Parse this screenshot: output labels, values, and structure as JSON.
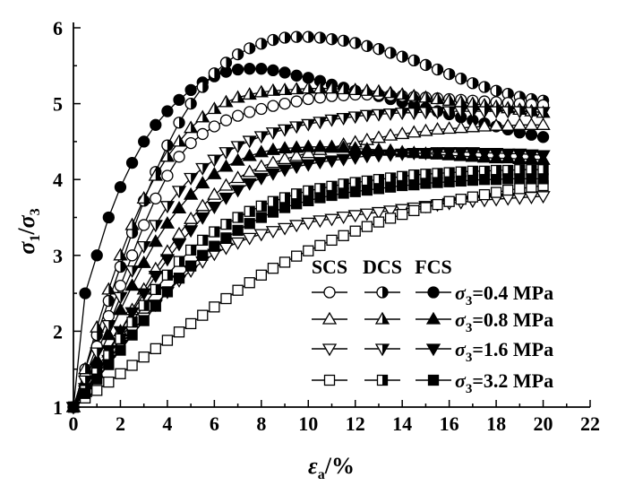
{
  "chart_data": {
    "type": "line",
    "xlabel": "εa/%",
    "ylabel": "σ1/σ3",
    "xlim": [
      0,
      22
    ],
    "ylim": [
      1,
      6
    ],
    "xticks": [
      "0",
      "2",
      "4",
      "6",
      "8",
      "10",
      "12",
      "14",
      "16",
      "18",
      "20",
      "22"
    ],
    "yticks": [
      "1",
      "2",
      "3",
      "4",
      "5",
      "6"
    ],
    "grid": false,
    "legend_position": "bottom-right",
    "legend_header": [
      "SCS",
      "DCS",
      "FCS"
    ],
    "legend_rows": [
      "σ3=0.4 MPa",
      "σ3=0.8 MPa",
      "σ3=1.6 MPa",
      "σ3=3.2 MPa"
    ],
    "marker_styles": {
      "SCS": "open",
      "DCS": "half-filled",
      "FCS": "filled"
    },
    "marker_shapes": {
      "σ3=0.4 MPa": "circle",
      "σ3=0.8 MPa": "triangle-up",
      "σ3=1.6 MPa": "triangle-down",
      "σ3=3.2 MPa": "square"
    },
    "series": [
      {
        "style": "FCS",
        "pressure": "σ3=0.4 MPa",
        "x": [
          0,
          0.5,
          1,
          1.5,
          2,
          2.5,
          3,
          3.5,
          4,
          4.5,
          5,
          5.5,
          6,
          6.5,
          7,
          7.5,
          8,
          8.5,
          9,
          9.5,
          10,
          10.5,
          11,
          11.5,
          12,
          12.5,
          13,
          13.5,
          14,
          14.5,
          15,
          15.5,
          16,
          16.5,
          17,
          17.5,
          18,
          18.5,
          19,
          19.5,
          20
        ],
        "y": [
          1,
          2.5,
          3,
          3.5,
          3.9,
          4.22,
          4.5,
          4.72,
          4.9,
          5.05,
          5.18,
          5.28,
          5.36,
          5.42,
          5.45,
          5.46,
          5.46,
          5.44,
          5.41,
          5.37,
          5.34,
          5.3,
          5.25,
          5.21,
          5.17,
          5.13,
          5.1,
          5.06,
          5.02,
          4.98,
          4.94,
          4.9,
          4.86,
          4.82,
          4.78,
          4.74,
          4.7,
          4.66,
          4.62,
          4.59,
          4.56
        ]
      },
      {
        "style": "DCS",
        "pressure": "σ3=0.4 MPa",
        "x": [
          0,
          0.5,
          1,
          1.5,
          2,
          2.5,
          3,
          3.5,
          4,
          4.5,
          5,
          5.5,
          6,
          6.5,
          7,
          7.5,
          8,
          8.5,
          9,
          9.5,
          10,
          10.5,
          11,
          11.5,
          12,
          12.5,
          13,
          13.5,
          14,
          14.5,
          15,
          15.5,
          16,
          16.5,
          17,
          17.5,
          18,
          18.5,
          19,
          19.5,
          20
        ],
        "y": [
          1,
          1.5,
          1.95,
          2.4,
          2.85,
          3.3,
          3.72,
          4.1,
          4.45,
          4.75,
          5,
          5.22,
          5.4,
          5.54,
          5.65,
          5.73,
          5.79,
          5.84,
          5.87,
          5.88,
          5.88,
          5.87,
          5.85,
          5.83,
          5.8,
          5.76,
          5.72,
          5.67,
          5.62,
          5.57,
          5.51,
          5.45,
          5.39,
          5.33,
          5.27,
          5.22,
          5.17,
          5.13,
          5.09,
          5.06,
          5.04
        ]
      },
      {
        "style": "SCS",
        "pressure": "σ3=0.4 MPa",
        "x": [
          0,
          0.5,
          1,
          1.5,
          2,
          2.5,
          3,
          3.5,
          4,
          4.5,
          5,
          5.5,
          6,
          6.5,
          7,
          7.5,
          8,
          8.5,
          9,
          9.5,
          10,
          10.5,
          11,
          11.5,
          12,
          12.5,
          13,
          13.5,
          14,
          14.5,
          15,
          15.5,
          16,
          16.5,
          17,
          17.5,
          18,
          18.5,
          19,
          19.5,
          20
        ],
        "y": [
          1,
          1.4,
          1.8,
          2.2,
          2.6,
          3,
          3.4,
          3.75,
          4.05,
          4.3,
          4.48,
          4.6,
          4.7,
          4.78,
          4.84,
          4.89,
          4.93,
          4.97,
          5,
          5.03,
          5.06,
          5.08,
          5.1,
          5.11,
          5.12,
          5.12,
          5.12,
          5.11,
          5.1,
          5.09,
          5.08,
          5.07,
          5.06,
          5.05,
          5.04,
          5.03,
          5.02,
          5.01,
          5,
          4.99,
          4.98
        ]
      },
      {
        "style": "SCS",
        "pressure": "σ3=0.8 MPa",
        "x": [
          0,
          0.5,
          1,
          1.5,
          2,
          2.5,
          3,
          3.5,
          4,
          4.5,
          5,
          5.5,
          6,
          6.5,
          7,
          7.5,
          8,
          8.5,
          9,
          9.5,
          10,
          10.5,
          11,
          11.5,
          12,
          12.5,
          13,
          13.5,
          14,
          14.5,
          15,
          15.5,
          16,
          16.5,
          17,
          17.5,
          18,
          18.5,
          19,
          19.5,
          20
        ],
        "y": [
          1,
          1.2,
          1.45,
          1.72,
          2,
          2.28,
          2.55,
          2.82,
          3.05,
          3.28,
          3.48,
          3.65,
          3.8,
          3.92,
          4.02,
          4.1,
          4.17,
          4.22,
          4.27,
          4.31,
          4.35,
          4.39,
          4.42,
          4.46,
          4.49,
          4.52,
          4.55,
          4.58,
          4.6,
          4.62,
          4.64,
          4.66,
          4.67,
          4.68,
          4.69,
          4.7,
          4.71,
          4.71,
          4.72,
          4.72,
          4.72
        ]
      },
      {
        "style": "DCS",
        "pressure": "σ3=0.8 MPa",
        "x": [
          0,
          0.5,
          1,
          1.5,
          2,
          2.5,
          3,
          3.5,
          4,
          4.5,
          5,
          5.5,
          6,
          6.5,
          7,
          7.5,
          8,
          8.5,
          9,
          9.5,
          10,
          10.5,
          11,
          11.5,
          12,
          12.5,
          13,
          13.5,
          14,
          14.5,
          15,
          15.5,
          16,
          16.5,
          17,
          17.5,
          18,
          18.5,
          19,
          19.5,
          20
        ],
        "y": [
          1,
          1.5,
          2.05,
          2.55,
          3,
          3.4,
          3.75,
          4.05,
          4.3,
          4.5,
          4.68,
          4.82,
          4.93,
          5.02,
          5.08,
          5.12,
          5.15,
          5.17,
          5.18,
          5.19,
          5.2,
          5.2,
          5.2,
          5.19,
          5.18,
          5.17,
          5.16,
          5.14,
          5.12,
          5.1,
          5.08,
          5.06,
          5.04,
          5.02,
          5,
          4.98,
          4.96,
          4.94,
          4.92,
          4.9,
          4.88
        ]
      },
      {
        "style": "FCS",
        "pressure": "σ3=0.8 MPa",
        "x": [
          0,
          0.5,
          1,
          1.5,
          2,
          2.5,
          3,
          3.5,
          4,
          4.5,
          5,
          5.5,
          6,
          6.5,
          7,
          7.5,
          8,
          8.5,
          9,
          9.5,
          10,
          10.5,
          11,
          11.5,
          12,
          12.5,
          13,
          13.5,
          14,
          14.5,
          15,
          15.5,
          16,
          16.5,
          17,
          17.5,
          18,
          18.5,
          19,
          19.5,
          20
        ],
        "y": [
          1,
          1.3,
          1.62,
          1.95,
          2.28,
          2.6,
          2.9,
          3.18,
          3.42,
          3.62,
          3.8,
          3.95,
          4.07,
          4.17,
          4.25,
          4.31,
          4.36,
          4.39,
          4.41,
          4.42,
          4.43,
          4.43,
          4.43,
          4.42,
          4.41,
          4.4,
          4.39,
          4.38,
          4.36,
          4.35,
          4.34,
          4.33,
          4.32,
          4.31,
          4.3,
          4.29,
          4.28,
          4.28,
          4.27,
          4.27,
          4.26
        ]
      },
      {
        "style": "SCS",
        "pressure": "σ3=1.6 MPa",
        "x": [
          0,
          0.5,
          1,
          1.5,
          2,
          2.5,
          3,
          3.5,
          4,
          4.5,
          5,
          5.5,
          6,
          6.5,
          7,
          7.5,
          8,
          8.5,
          9,
          9.5,
          10,
          10.5,
          11,
          11.5,
          12,
          12.5,
          13,
          13.5,
          14,
          14.5,
          15,
          15.5,
          16,
          16.5,
          17,
          17.5,
          18,
          18.5,
          19,
          19.5,
          20
        ],
        "y": [
          1,
          1.22,
          1.42,
          1.62,
          1.82,
          2,
          2.18,
          2.35,
          2.52,
          2.67,
          2.8,
          2.92,
          3.02,
          3.1,
          3.17,
          3.23,
          3.28,
          3.32,
          3.36,
          3.4,
          3.43,
          3.46,
          3.48,
          3.51,
          3.53,
          3.55,
          3.57,
          3.59,
          3.61,
          3.63,
          3.65,
          3.67,
          3.69,
          3.7,
          3.72,
          3.73,
          3.74,
          3.75,
          3.76,
          3.77,
          3.78
        ]
      },
      {
        "style": "DCS",
        "pressure": "σ3=1.6 MPa",
        "x": [
          0,
          0.5,
          1,
          1.5,
          2,
          2.5,
          3,
          3.5,
          4,
          4.5,
          5,
          5.5,
          6,
          6.5,
          7,
          7.5,
          8,
          8.5,
          9,
          9.5,
          10,
          10.5,
          11,
          11.5,
          12,
          12.5,
          13,
          13.5,
          14,
          14.5,
          15,
          15.5,
          16,
          16.5,
          17,
          17.5,
          18,
          18.5,
          19,
          19.5,
          20
        ],
        "y": [
          1,
          1.35,
          1.72,
          2.08,
          2.45,
          2.8,
          3.12,
          3.4,
          3.65,
          3.85,
          4.02,
          4.15,
          4.26,
          4.36,
          4.44,
          4.51,
          4.57,
          4.62,
          4.66,
          4.7,
          4.73,
          4.76,
          4.79,
          4.81,
          4.83,
          4.85,
          4.86,
          4.87,
          4.88,
          4.88,
          4.89,
          4.89,
          4.9,
          4.9,
          4.9,
          4.9,
          4.9,
          4.9,
          4.9,
          4.89,
          4.89
        ]
      },
      {
        "style": "FCS",
        "pressure": "σ3=1.6 MPa",
        "x": [
          0,
          0.5,
          1,
          1.5,
          2,
          2.5,
          3,
          3.5,
          4,
          4.5,
          5,
          5.5,
          6,
          6.5,
          7,
          7.5,
          8,
          8.5,
          9,
          9.5,
          10,
          10.5,
          11,
          11.5,
          12,
          12.5,
          13,
          13.5,
          14,
          14.5,
          15,
          15.5,
          16,
          16.5,
          17,
          17.5,
          18,
          18.5,
          19,
          19.5,
          20
        ],
        "y": [
          1,
          1.25,
          1.5,
          1.75,
          2,
          2.25,
          2.5,
          2.73,
          2.95,
          3.15,
          3.33,
          3.5,
          3.64,
          3.76,
          3.86,
          3.95,
          4.02,
          4.08,
          4.13,
          4.17,
          4.2,
          4.23,
          4.25,
          4.27,
          4.29,
          4.31,
          4.32,
          4.33,
          4.34,
          4.35,
          4.35,
          4.36,
          4.36,
          4.36,
          4.36,
          4.35,
          4.35,
          4.34,
          4.34,
          4.33,
          4.32
        ]
      },
      {
        "style": "SCS",
        "pressure": "σ3=3.2 MPa",
        "x": [
          0,
          0.5,
          1,
          1.5,
          2,
          2.5,
          3,
          3.5,
          4,
          4.5,
          5,
          5.5,
          6,
          6.5,
          7,
          7.5,
          8,
          8.5,
          9,
          9.5,
          10,
          10.5,
          11,
          11.5,
          12,
          12.5,
          13,
          13.5,
          14,
          14.5,
          15,
          15.5,
          16,
          16.5,
          17,
          17.5,
          18,
          18.5,
          19,
          19.5,
          20
        ],
        "y": [
          1,
          1.12,
          1.22,
          1.33,
          1.44,
          1.55,
          1.66,
          1.77,
          1.88,
          1.99,
          2.1,
          2.21,
          2.32,
          2.43,
          2.54,
          2.64,
          2.74,
          2.83,
          2.91,
          2.99,
          3.06,
          3.13,
          3.2,
          3.26,
          3.32,
          3.38,
          3.44,
          3.49,
          3.54,
          3.59,
          3.63,
          3.67,
          3.71,
          3.74,
          3.77,
          3.8,
          3.83,
          3.86,
          3.88,
          3.9,
          3.92
        ]
      },
      {
        "style": "DCS",
        "pressure": "σ3=3.2 MPa",
        "x": [
          0,
          0.5,
          1,
          1.5,
          2,
          2.5,
          3,
          3.5,
          4,
          4.5,
          5,
          5.5,
          6,
          6.5,
          7,
          7.5,
          8,
          8.5,
          9,
          9.5,
          10,
          10.5,
          11,
          11.5,
          12,
          12.5,
          13,
          13.5,
          14,
          14.5,
          15,
          15.5,
          16,
          16.5,
          17,
          17.5,
          18,
          18.5,
          19,
          19.5,
          20
        ],
        "y": [
          1,
          1.22,
          1.45,
          1.68,
          1.9,
          2.12,
          2.34,
          2.55,
          2.74,
          2.92,
          3.07,
          3.2,
          3.31,
          3.41,
          3.5,
          3.58,
          3.65,
          3.71,
          3.76,
          3.81,
          3.85,
          3.88,
          3.91,
          3.94,
          3.96,
          3.98,
          4,
          4.02,
          4.04,
          4.06,
          4.07,
          4.08,
          4.09,
          4.1,
          4.11,
          4.11,
          4.12,
          4.12,
          4.13,
          4.13,
          4.13
        ]
      },
      {
        "style": "FCS",
        "pressure": "σ3=3.2 MPa",
        "x": [
          0,
          0.5,
          1,
          1.5,
          2,
          2.5,
          3,
          3.5,
          4,
          4.5,
          5,
          5.5,
          6,
          6.5,
          7,
          7.5,
          8,
          8.5,
          9,
          9.5,
          10,
          10.5,
          11,
          11.5,
          12,
          12.5,
          13,
          13.5,
          14,
          14.5,
          15,
          15.5,
          16,
          16.5,
          17,
          17.5,
          18,
          18.5,
          19,
          19.5,
          20
        ],
        "y": [
          1,
          1.18,
          1.37,
          1.56,
          1.75,
          1.95,
          2.14,
          2.33,
          2.52,
          2.7,
          2.86,
          3,
          3.12,
          3.23,
          3.33,
          3.42,
          3.5,
          3.57,
          3.63,
          3.68,
          3.72,
          3.76,
          3.79,
          3.82,
          3.84,
          3.86,
          3.88,
          3.9,
          3.92,
          3.93,
          3.95,
          3.96,
          3.97,
          3.98,
          3.99,
          4,
          4,
          4.01,
          4.01,
          4.01,
          4.01
        ]
      }
    ]
  }
}
